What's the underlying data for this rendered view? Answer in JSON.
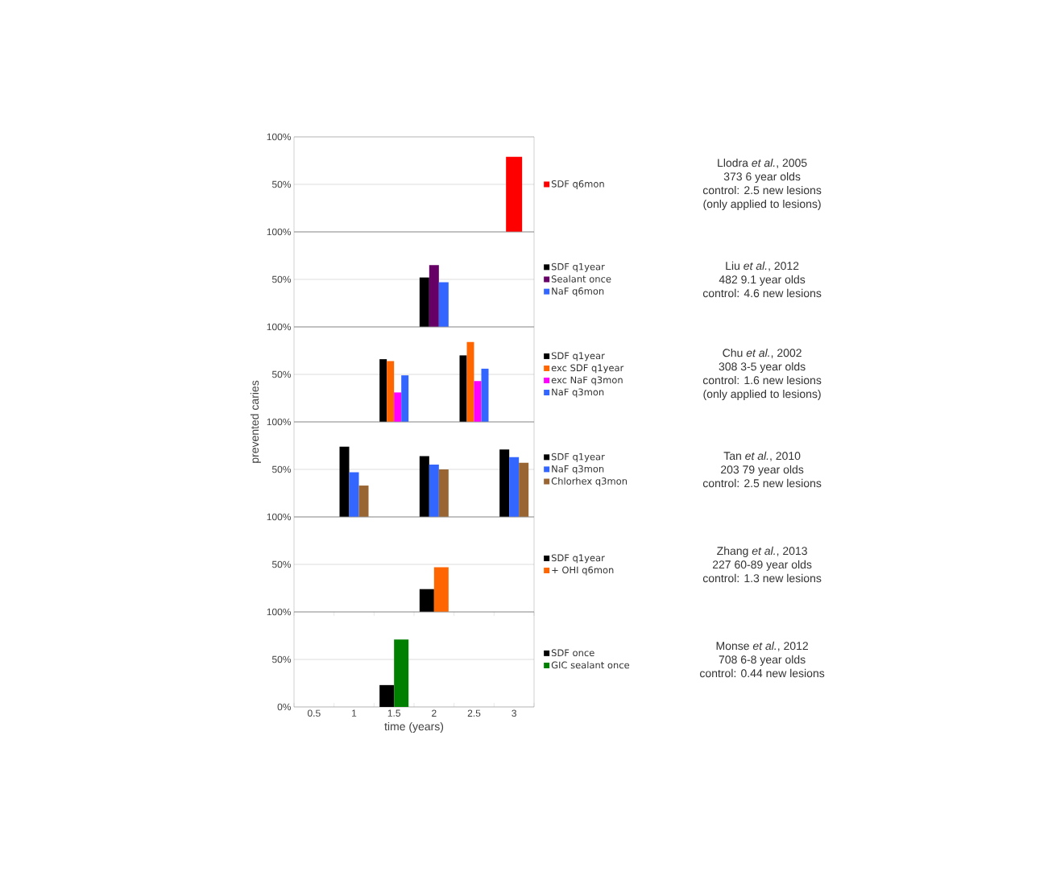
{
  "chart_data": [
    {
      "type": "bar",
      "categories": [
        "0.5",
        "1",
        "1.5",
        "2",
        "2.5",
        "3"
      ],
      "series": [
        {
          "name": "SDF q6mon",
          "color": "#ff0000",
          "values": [
            null,
            null,
            null,
            null,
            null,
            79
          ]
        }
      ],
      "ylim": [
        0,
        100
      ],
      "yticks": [
        {
          "value": 0,
          "label": null
        },
        {
          "value": 50,
          "label": "50%"
        },
        {
          "value": 100,
          "label": "100%"
        }
      ],
      "grid": "y",
      "legend": "right",
      "tick_labels": "y",
      "annotations": [
        "Llodra *et al.*, 2005",
        "373 6 year olds",
        "control: 2.5 new lesions",
        "(only applied to lesions)"
      ]
    },
    {
      "type": "bar",
      "categories": [
        "0.5",
        "1",
        "1.5",
        "2",
        "2.5",
        "3"
      ],
      "series": [
        {
          "name": "SDF q1year",
          "color": "#000000",
          "values": [
            null,
            null,
            null,
            52,
            null,
            null
          ]
        },
        {
          "name": "Sealant once",
          "color": "#660066",
          "values": [
            null,
            null,
            null,
            65,
            null,
            null
          ]
        },
        {
          "name": "NaF q6mon",
          "color": "#3366ff",
          "values": [
            null,
            null,
            null,
            47,
            null,
            null
          ]
        }
      ],
      "ylim": [
        0,
        100
      ],
      "yticks": [
        {
          "value": 0,
          "label": null
        },
        {
          "value": 50,
          "label": "50%"
        },
        {
          "value": 100,
          "label": "100%"
        }
      ],
      "grid": "y",
      "legend": "right",
      "tick_labels": "y",
      "annotations": [
        "Liu *et al.*, 2012",
        "482 9.1 year olds",
        "control: 4.6 new lesions"
      ]
    },
    {
      "type": "bar",
      "categories": [
        "0.5",
        "1",
        "1.5",
        "2",
        "2.5",
        "3"
      ],
      "series": [
        {
          "name": "SDF q1year",
          "color": "#000000",
          "values": [
            null,
            null,
            66,
            null,
            70,
            null
          ]
        },
        {
          "name": "exc SDF q1year",
          "color": "#ff6600",
          "values": [
            null,
            null,
            64,
            null,
            84,
            null
          ]
        },
        {
          "name": "exc NaF q3mon",
          "color": "#ff00ff",
          "values": [
            null,
            null,
            31,
            null,
            43,
            null
          ]
        },
        {
          "name": "NaF q3mon",
          "color": "#3366ff",
          "values": [
            null,
            null,
            49,
            null,
            56,
            null
          ]
        }
      ],
      "ylim": [
        0,
        100
      ],
      "yticks": [
        {
          "value": 0,
          "label": null
        },
        {
          "value": 50,
          "label": "50%"
        },
        {
          "value": 100,
          "label": "100%"
        }
      ],
      "grid": "y",
      "legend": "right",
      "tick_labels": "y",
      "ylabel": "prevented caries",
      "annotations": [
        "Chu *et al.*, 2002",
        "308 3-5 year olds",
        "control: 1.6 new lesions",
        "(only applied to lesions)"
      ]
    },
    {
      "type": "bar",
      "categories": [
        "0.5",
        "1",
        "1.5",
        "2",
        "2.5",
        "3"
      ],
      "series": [
        {
          "name": "SDF q1year",
          "color": "#000000",
          "values": [
            null,
            74,
            null,
            64,
            null,
            71
          ]
        },
        {
          "name": "NaF q3mon",
          "color": "#3366ff",
          "values": [
            null,
            47,
            null,
            55,
            null,
            63
          ]
        },
        {
          "name": "Chlorhex q3mon",
          "color": "#996633",
          "values": [
            null,
            33,
            null,
            50,
            null,
            57
          ]
        }
      ],
      "ylim": [
        0,
        100
      ],
      "yticks": [
        {
          "value": 0,
          "label": null
        },
        {
          "value": 50,
          "label": "50%"
        },
        {
          "value": 100,
          "label": "100%"
        }
      ],
      "grid": "y",
      "legend": "right",
      "tick_labels": "y",
      "annotations": [
        "Tan *et al.*, 2010",
        "203 79 year olds",
        "control: 2.5 new lesions"
      ]
    },
    {
      "type": "bar",
      "categories": [
        "0.5",
        "1",
        "1.5",
        "2",
        "2.5",
        "3"
      ],
      "series": [
        {
          "name": "SDF q1year",
          "color": "#000000",
          "values": [
            null,
            null,
            null,
            24,
            null,
            null
          ]
        },
        {
          "name": "+ OHI q6mon",
          "color": "#ff6600",
          "values": [
            null,
            null,
            null,
            47,
            null,
            null
          ]
        }
      ],
      "ylim": [
        0,
        100
      ],
      "yticks": [
        {
          "value": 0,
          "label": null
        },
        {
          "value": 50,
          "label": "50%"
        },
        {
          "value": 100,
          "label": "100%"
        }
      ],
      "grid": "y",
      "legend": "right",
      "tick_labels": "y",
      "annotations": [
        "Zhang *et al.*, 2013",
        "227 60-89 year olds",
        "control: 1.3 new lesions"
      ]
    },
    {
      "type": "bar",
      "categories": [
        "0.5",
        "1",
        "1.5",
        "2",
        "2.5",
        "3"
      ],
      "series": [
        {
          "name": "SDF once",
          "color": "#000000",
          "values": [
            null,
            null,
            23,
            null,
            null,
            null
          ]
        },
        {
          "name": "GIC sealant once",
          "color": "#008000",
          "values": [
            null,
            null,
            71,
            null,
            null,
            null
          ]
        }
      ],
      "ylim": [
        0,
        100
      ],
      "yticks": [
        {
          "value": 0,
          "label": "0%"
        },
        {
          "value": 50,
          "label": "50%"
        },
        {
          "value": 100,
          "label": "100%"
        }
      ],
      "grid": "y",
      "legend": "right",
      "xlabel": "time (years)",
      "annotations": [
        "Monse *et al.*, 2012",
        "708 6-8 year olds",
        "control: 0.44 new lesions"
      ]
    }
  ]
}
